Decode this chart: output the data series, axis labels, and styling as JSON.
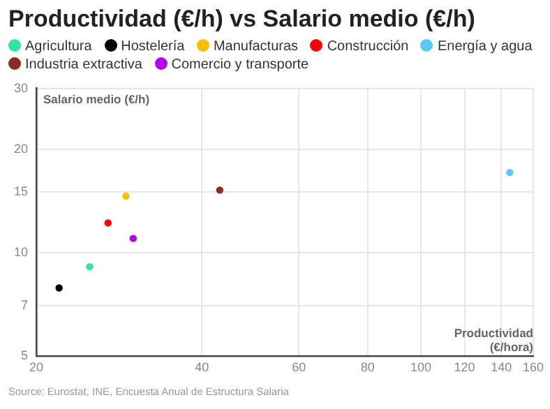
{
  "chart_data": {
    "type": "scatter",
    "title": "Productividad (€/h) vs Salario medio (€/h)",
    "xlabel": "Productividad (€/hora)",
    "ylabel": "Salario medio (€/h)",
    "series": [
      {
        "name": "Agricultura",
        "color": "#2ee89a",
        "x": [
          25.0
        ],
        "values": [
          9.1
        ]
      },
      {
        "name": "Hostelería",
        "color": "#000000",
        "x": [
          22.0
        ],
        "values": [
          7.9
        ]
      },
      {
        "name": "Manufacturas",
        "color": "#ffbf00",
        "x": [
          29.1
        ],
        "values": [
          14.6
        ]
      },
      {
        "name": "Construcción",
        "color": "#ff0000",
        "x": [
          27.0
        ],
        "values": [
          12.2
        ]
      },
      {
        "name": "Energía y agua",
        "color": "#5bc8f5",
        "x": [
          145
        ],
        "values": [
          17.1
        ]
      },
      {
        "name": "Industria extractiva",
        "color": "#8b2a20",
        "x": [
          43.1
        ],
        "values": [
          15.2
        ]
      },
      {
        "name": "Comercio y transporte",
        "color": "#b400f0",
        "x": [
          30.0
        ],
        "values": [
          11.0
        ]
      }
    ],
    "log": "xy",
    "xlim": [
      20,
      160
    ],
    "xticks": [
      20,
      40,
      60,
      80,
      100,
      120,
      140,
      160
    ],
    "ylim": [
      5,
      30
    ],
    "yticks": [
      5,
      7,
      10,
      15,
      20,
      30
    ],
    "grid": true,
    "legend": "top",
    "marker": "circle",
    "annotations": [
      "Source: Eurostat, INE, Encuesta Anual de Estructura Salaria"
    ]
  }
}
